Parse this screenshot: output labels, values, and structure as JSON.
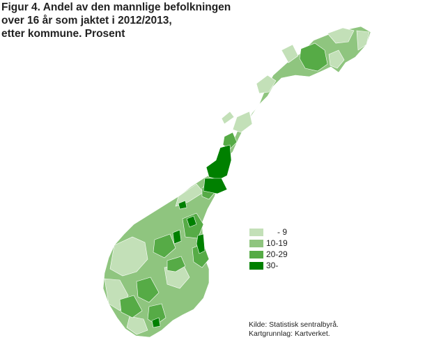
{
  "title": "Figur 4. Andel av den mannlige befolkningen over 16 år som jaktet i 2012/2013, etter kommune. Prosent",
  "colors": {
    "class_0_9": "#c3e0b8",
    "class_10_19": "#8fc57f",
    "class_20_29": "#56ab46",
    "class_30_plus": "#008000",
    "border": "#ffffff"
  },
  "legend": [
    {
      "label": "-  9",
      "color": "#c3e0b8"
    },
    {
      "label": "10-19",
      "color": "#8fc57f"
    },
    {
      "label": "20-29",
      "color": "#56ab46"
    },
    {
      "label": "30-",
      "color": "#008000"
    }
  ],
  "source": {
    "line1": "Kilde: Statistisk sentralbyrå.",
    "line2": "Kartgrunnlag: Kartverket."
  }
}
